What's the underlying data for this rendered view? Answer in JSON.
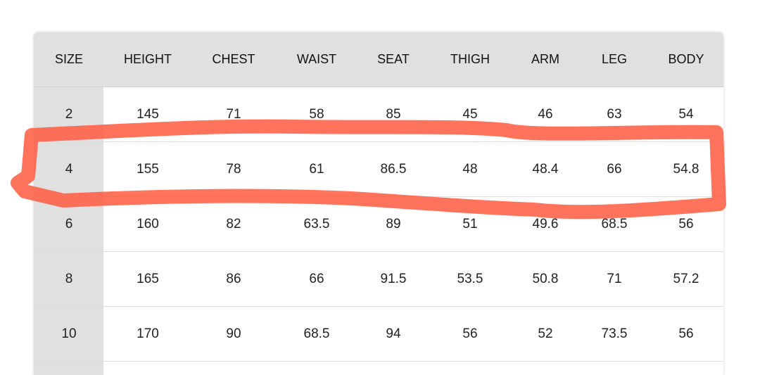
{
  "table": {
    "headers": [
      "SIZE",
      "HEIGHT",
      "CHEST",
      "WAIST",
      "SEAT",
      "THIGH",
      "ARM",
      "LEG",
      "BODY"
    ],
    "rows": [
      [
        "2",
        "145",
        "71",
        "58",
        "85",
        "45",
        "46",
        "63",
        "54"
      ],
      [
        "4",
        "155",
        "78",
        "61",
        "86.5",
        "48",
        "48.4",
        "66",
        "54.8"
      ],
      [
        "6",
        "160",
        "82",
        "63.5",
        "89",
        "51",
        "49.6",
        "68.5",
        "56"
      ],
      [
        "8",
        "165",
        "86",
        "66",
        "91.5",
        "53.5",
        "50.8",
        "71",
        "57.2"
      ],
      [
        "10",
        "170",
        "90",
        "68.5",
        "94",
        "56",
        "52",
        "73.5",
        "56"
      ]
    ]
  },
  "annotation": {
    "highlighted_size": "4",
    "color": "#ff5a40"
  }
}
